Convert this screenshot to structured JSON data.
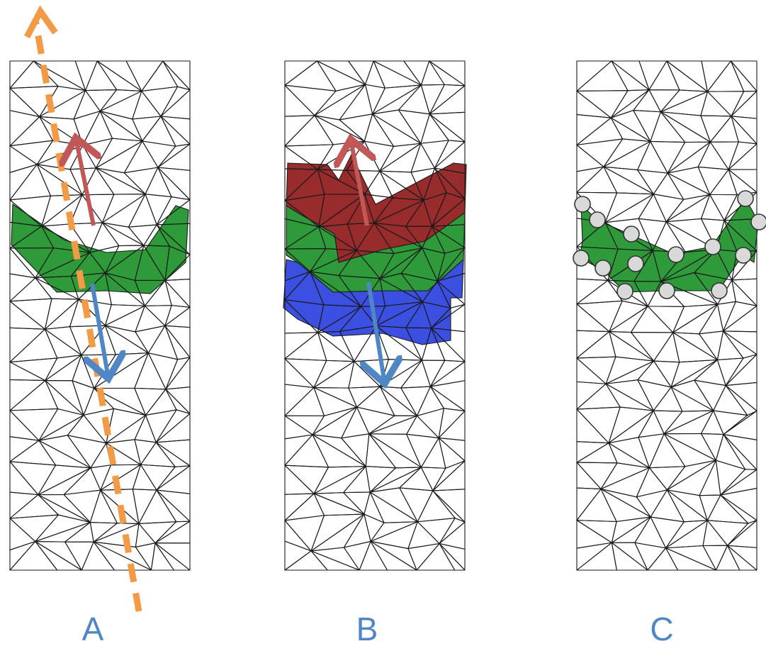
{
  "panels": [
    {
      "id": "A",
      "label": "A"
    },
    {
      "id": "B",
      "label": "B"
    },
    {
      "id": "C",
      "label": "C"
    }
  ],
  "colors": {
    "label": "#4f86c6",
    "mesh_line": "#1a1a1a",
    "band_green": "#2f9a3a",
    "band_red": "#982b2b",
    "band_blue": "#3b4fe0",
    "arrow_red": "#c15757",
    "arrow_blue": "#4f86c6",
    "axis_orange": "#f39a46",
    "vertex_fill": "#d9d9d9",
    "vertex_stroke": "#333333"
  },
  "shapes": {
    "mesh": "triangle-mesh",
    "direction_up": "arrow-up-icon",
    "direction_down": "arrow-down-icon",
    "axis": "dashed-arrow",
    "vertex_marker": "circle"
  }
}
